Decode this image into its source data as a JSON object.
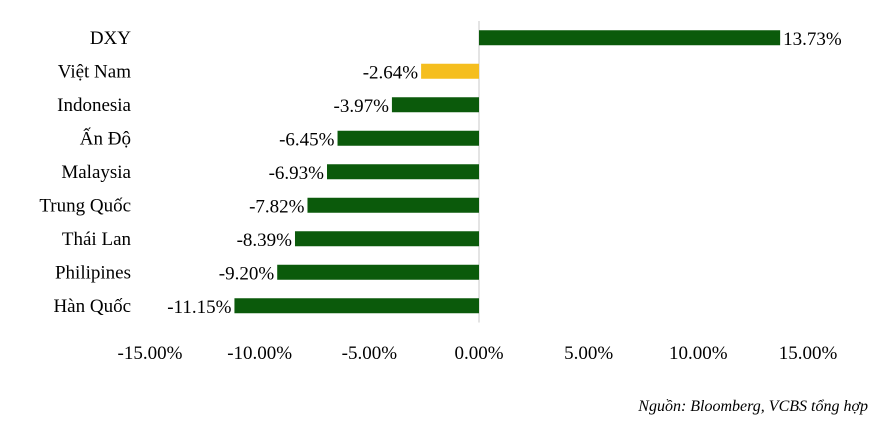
{
  "chart_data": {
    "type": "bar",
    "orientation": "horizontal",
    "categories": [
      "DXY",
      "Việt Nam",
      "Indonesia",
      "Ấn Độ",
      "Malaysia",
      "Trung Quốc",
      "Thái Lan",
      "Philipines",
      "Hàn Quốc"
    ],
    "values": [
      13.73,
      -2.64,
      -3.97,
      -6.45,
      -6.93,
      -7.82,
      -8.39,
      -9.2,
      -11.15
    ],
    "value_labels": [
      "13.73%",
      "-2.64%",
      "-3.97%",
      "-6.45%",
      "-6.93%",
      "-7.82%",
      "-8.39%",
      "-9.20%",
      "-11.15%"
    ],
    "bar_colors": [
      "#0b5a0b",
      "#f5be1e",
      "#0b5a0b",
      "#0b5a0b",
      "#0b5a0b",
      "#0b5a0b",
      "#0b5a0b",
      "#0b5a0b",
      "#0b5a0b"
    ],
    "xlim": [
      -15,
      15
    ],
    "x_ticks": [
      -15,
      -10,
      -5,
      0,
      5,
      10,
      15
    ],
    "x_tick_labels": [
      "-15.00%",
      "-10.00%",
      "-5.00%",
      "0.00%",
      "5.00%",
      "10.00%",
      "15.00%"
    ],
    "grid": false,
    "legend": "none"
  },
  "source_note": "Nguồn: Bloomberg, VCBS tổng hợp",
  "colors": {
    "primary_bar": "#0b5a0b",
    "highlight_bar": "#f5be1e",
    "zero_axis": "#c8c8c8"
  }
}
